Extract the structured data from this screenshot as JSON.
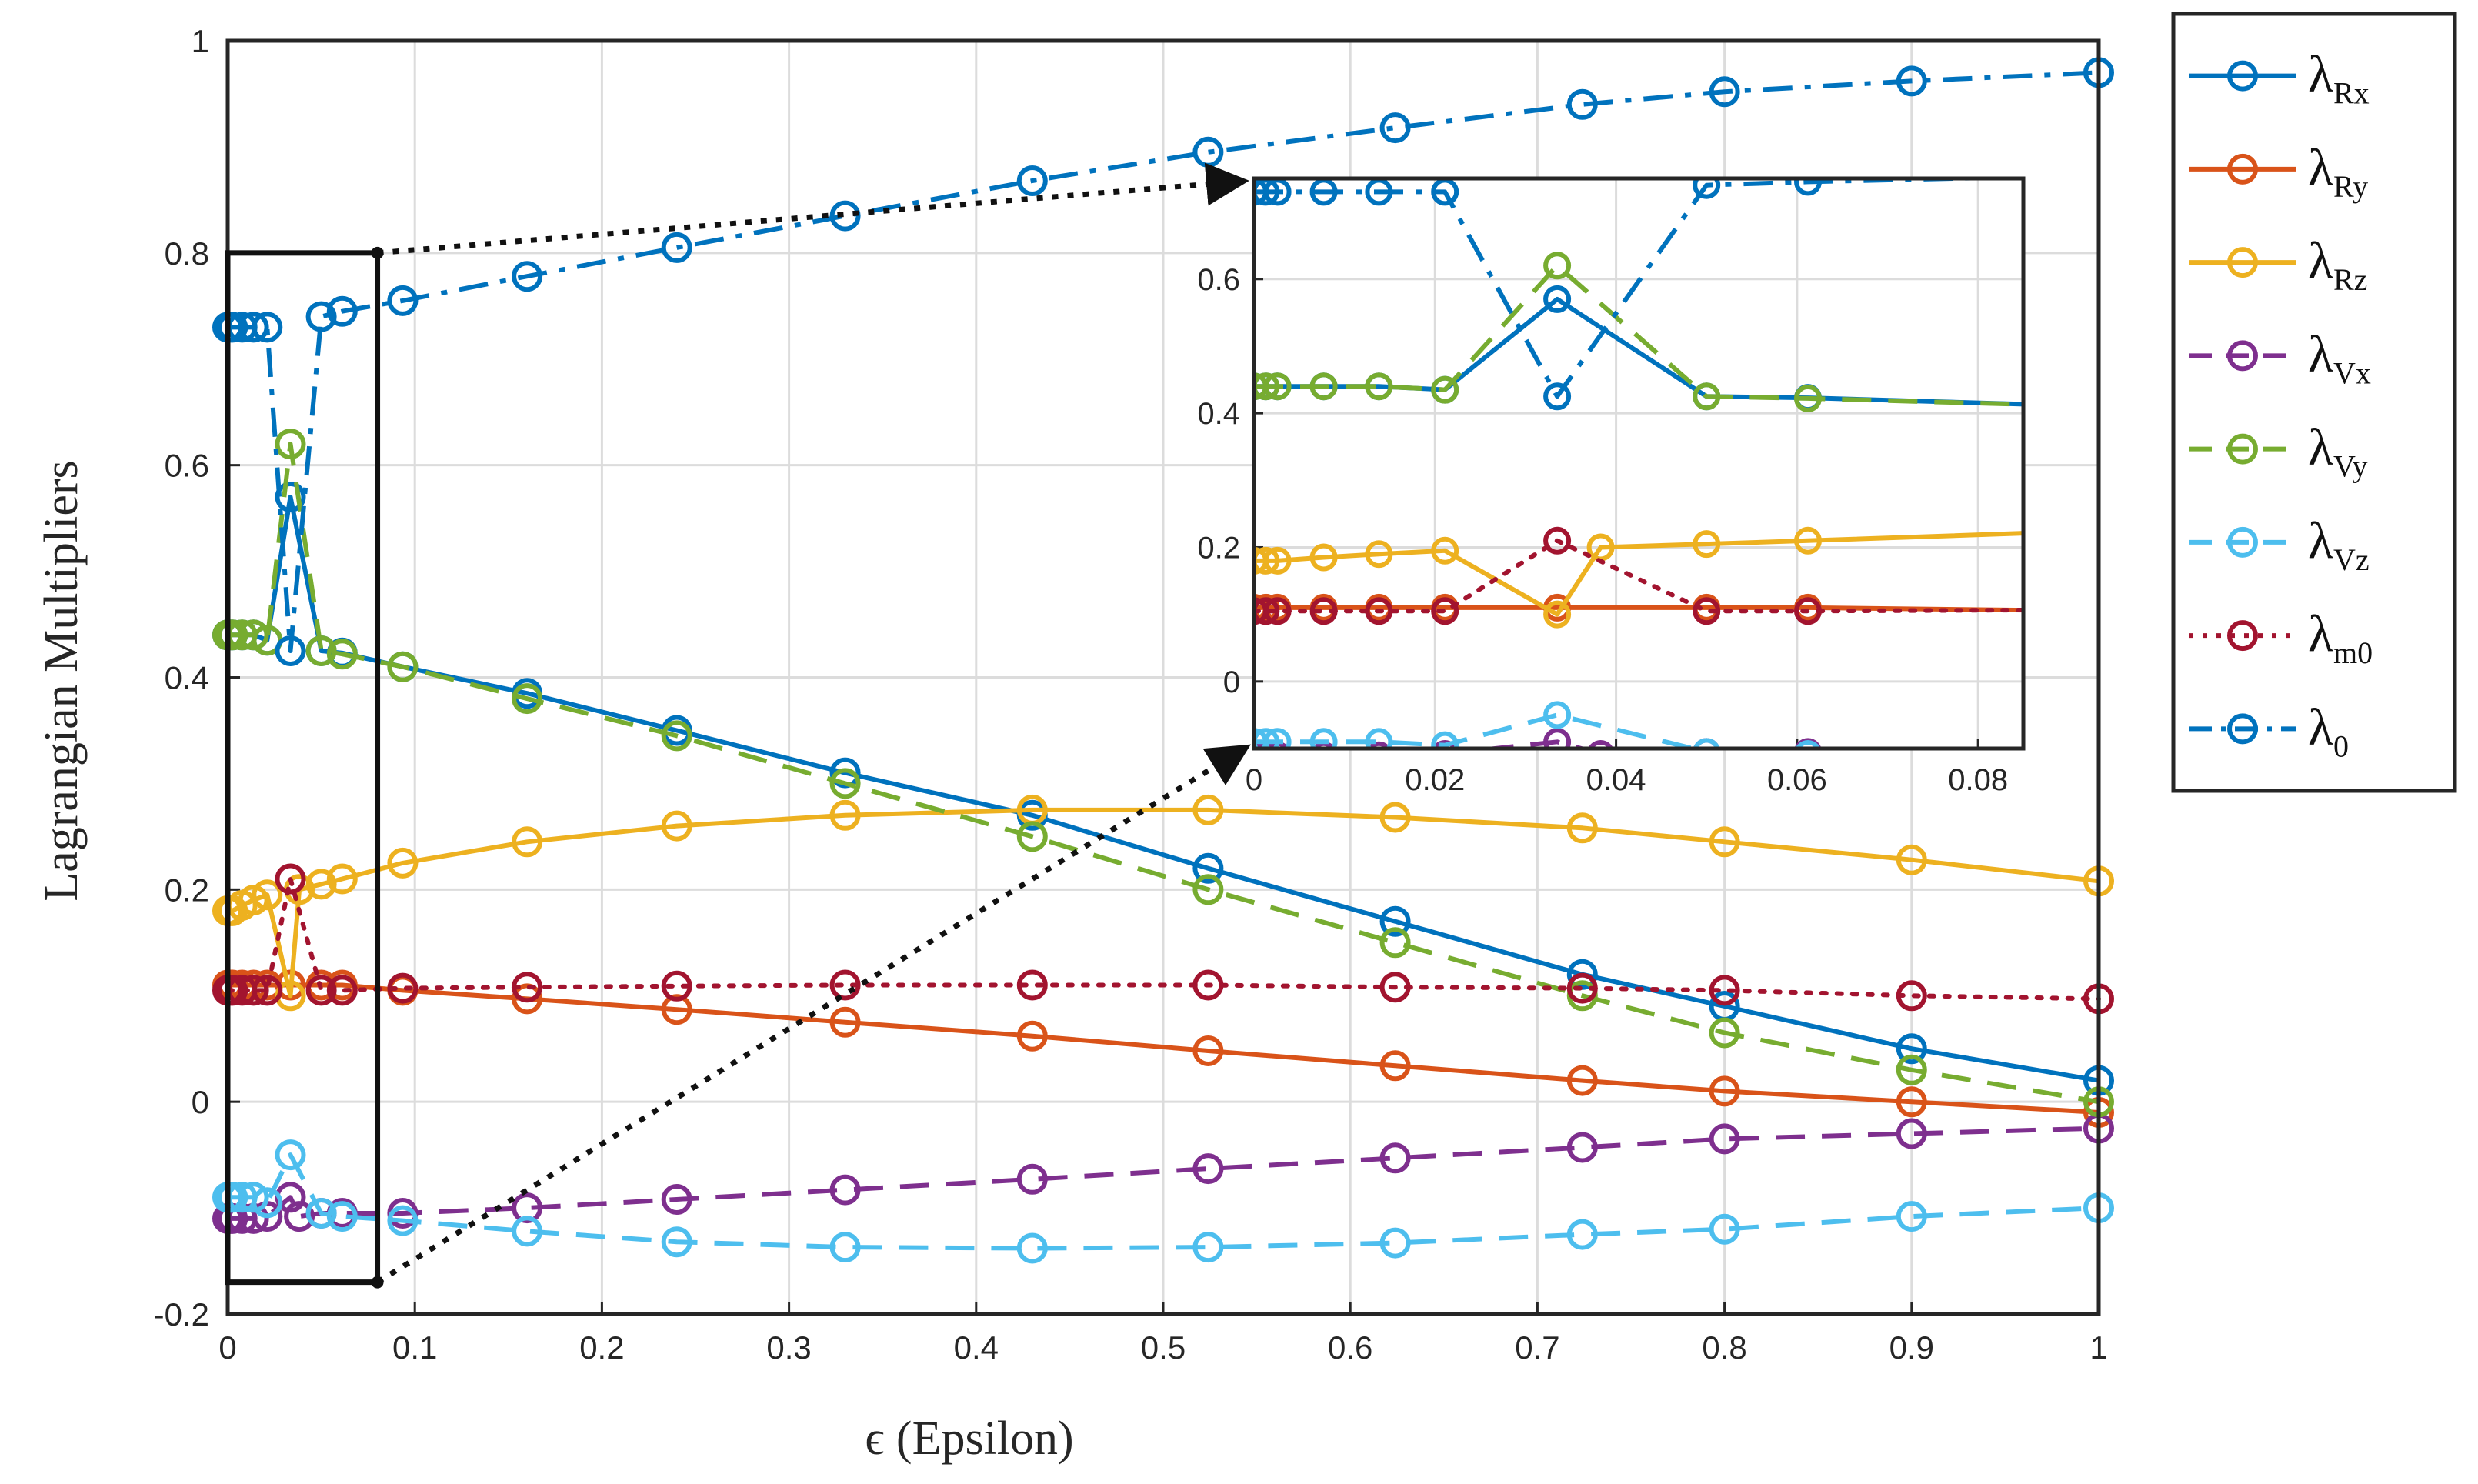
{
  "chart_data": {
    "type": "line",
    "xlabel": "ϵ (Epsilon)",
    "ylabel": "Lagrangian Multipliers",
    "xlim": [
      0,
      1
    ],
    "ylim": [
      -0.2,
      1
    ],
    "grid": true,
    "legend_position": "outside-right",
    "xticks": [
      "0",
      "0.1",
      "0.2",
      "0.3",
      "0.4",
      "0.5",
      "0.6",
      "0.7",
      "0.8",
      "0.9",
      "1"
    ],
    "yticks": [
      "-0.2",
      "0",
      "0.2",
      "0.4",
      "0.6",
      "0.8",
      "1"
    ],
    "series": [
      {
        "name": "λRx",
        "symbol": "λ",
        "sub": "Rx",
        "color": "#0072BD",
        "dash": "solid",
        "x": [
          0,
          0.0013,
          0.0026,
          0.0077,
          0.0138,
          0.0211,
          0.0335,
          0.05,
          0.0612,
          0.0935,
          0.16,
          0.24,
          0.33,
          0.43,
          0.524,
          0.624,
          0.724,
          0.8,
          0.9,
          1.0
        ],
        "y": [
          0.44,
          0.44,
          0.44,
          0.44,
          0.44,
          0.435,
          0.57,
          0.425,
          0.423,
          0.41,
          0.385,
          0.35,
          0.31,
          0.27,
          0.22,
          0.17,
          0.12,
          0.09,
          0.05,
          0.02
        ]
      },
      {
        "name": "λRy",
        "symbol": "λ",
        "sub": "Ry",
        "color": "#D95319",
        "dash": "solid",
        "x": [
          0,
          0.0013,
          0.0026,
          0.0077,
          0.0138,
          0.0211,
          0.0335,
          0.05,
          0.0612,
          0.0935,
          0.16,
          0.24,
          0.33,
          0.43,
          0.524,
          0.624,
          0.724,
          0.8,
          0.9,
          1.0
        ],
        "y": [
          0.11,
          0.11,
          0.11,
          0.11,
          0.11,
          0.11,
          0.11,
          0.11,
          0.11,
          0.105,
          0.097,
          0.087,
          0.075,
          0.062,
          0.048,
          0.034,
          0.02,
          0.01,
          0.0,
          -0.01
        ]
      },
      {
        "name": "λRz",
        "symbol": "λ",
        "sub": "Rz",
        "color": "#EDB120",
        "dash": "solid",
        "x": [
          0,
          0.0013,
          0.0026,
          0.0077,
          0.0138,
          0.0211,
          0.0335,
          0.0383,
          0.05,
          0.0612,
          0.0935,
          0.16,
          0.24,
          0.33,
          0.43,
          0.524,
          0.624,
          0.724,
          0.8,
          0.9,
          1.0
        ],
        "y": [
          0.18,
          0.18,
          0.18,
          0.185,
          0.19,
          0.195,
          0.1,
          0.2,
          0.205,
          0.21,
          0.225,
          0.245,
          0.26,
          0.27,
          0.275,
          0.275,
          0.268,
          0.258,
          0.245,
          0.228,
          0.208
        ]
      },
      {
        "name": "λVx",
        "symbol": "λ",
        "sub": "Vx",
        "color": "#7E2F8E",
        "dash": "dash",
        "x": [
          0,
          0.0013,
          0.0026,
          0.0077,
          0.0138,
          0.0211,
          0.0335,
          0.0383,
          0.05,
          0.0612,
          0.0935,
          0.16,
          0.24,
          0.33,
          0.43,
          0.524,
          0.624,
          0.724,
          0.8,
          0.9,
          1.0
        ],
        "y": [
          -0.11,
          -0.11,
          -0.11,
          -0.11,
          -0.11,
          -0.108,
          -0.09,
          -0.108,
          -0.105,
          -0.105,
          -0.105,
          -0.1,
          -0.092,
          -0.083,
          -0.073,
          -0.063,
          -0.053,
          -0.043,
          -0.035,
          -0.03,
          -0.025
        ]
      },
      {
        "name": "λVy",
        "symbol": "λ",
        "sub": "Vy",
        "color": "#77AC30",
        "dash": "dash",
        "x": [
          0,
          0.0013,
          0.0026,
          0.0077,
          0.0138,
          0.0211,
          0.0335,
          0.05,
          0.0612,
          0.0935,
          0.16,
          0.24,
          0.33,
          0.43,
          0.524,
          0.624,
          0.724,
          0.8,
          0.9,
          1.0
        ],
        "y": [
          0.44,
          0.44,
          0.44,
          0.44,
          0.44,
          0.435,
          0.62,
          0.425,
          0.422,
          0.41,
          0.38,
          0.345,
          0.3,
          0.25,
          0.2,
          0.15,
          0.1,
          0.065,
          0.03,
          0.0
        ]
      },
      {
        "name": "λVz",
        "symbol": "λ",
        "sub": "Vz",
        "color": "#4DBEEE",
        "dash": "dash",
        "x": [
          0,
          0.0013,
          0.0026,
          0.0077,
          0.0138,
          0.0211,
          0.0335,
          0.05,
          0.0612,
          0.0935,
          0.16,
          0.24,
          0.33,
          0.43,
          0.524,
          0.624,
          0.724,
          0.8,
          0.9,
          1.0
        ],
        "y": [
          -0.09,
          -0.09,
          -0.09,
          -0.09,
          -0.09,
          -0.095,
          -0.05,
          -0.105,
          -0.108,
          -0.112,
          -0.122,
          -0.132,
          -0.137,
          -0.138,
          -0.137,
          -0.133,
          -0.125,
          -0.12,
          -0.108,
          -0.1
        ]
      },
      {
        "name": "λm0",
        "symbol": "λ",
        "sub": "m0",
        "color": "#A2142F",
        "dash": "dot",
        "x": [
          0,
          0.0013,
          0.0026,
          0.0077,
          0.0138,
          0.0211,
          0.0335,
          0.05,
          0.0612,
          0.0935,
          0.16,
          0.24,
          0.33,
          0.43,
          0.524,
          0.624,
          0.724,
          0.8,
          0.9,
          1.0
        ],
        "y": [
          0.105,
          0.105,
          0.105,
          0.105,
          0.105,
          0.105,
          0.21,
          0.105,
          0.105,
          0.107,
          0.108,
          0.109,
          0.11,
          0.11,
          0.11,
          0.108,
          0.107,
          0.105,
          0.1,
          0.097
        ]
      },
      {
        "name": "λ0",
        "symbol": "λ",
        "sub": "0",
        "color": "#0072BD",
        "dash": "dashdot",
        "x": [
          0,
          0.0013,
          0.0026,
          0.0077,
          0.0138,
          0.0211,
          0.0335,
          0.05,
          0.0612,
          0.0935,
          0.16,
          0.24,
          0.33,
          0.43,
          0.524,
          0.624,
          0.724,
          0.8,
          0.9,
          1.0
        ],
        "y": [
          0.73,
          0.73,
          0.73,
          0.73,
          0.73,
          0.73,
          0.425,
          0.74,
          0.745,
          0.755,
          0.778,
          0.805,
          0.835,
          0.868,
          0.895,
          0.918,
          0.94,
          0.952,
          0.962,
          0.97
        ]
      }
    ],
    "inset": {
      "xlim": [
        0,
        0.085
      ],
      "ylim": [
        -0.1,
        0.75
      ],
      "xticks": [
        "0",
        "0.02",
        "0.04",
        "0.06",
        "0.08"
      ],
      "yticks": [
        "0",
        "0.2",
        "0.4",
        "0.6"
      ],
      "zoom_region": {
        "x": [
          0,
          0.08
        ],
        "y": [
          -0.17,
          0.8
        ]
      }
    }
  }
}
